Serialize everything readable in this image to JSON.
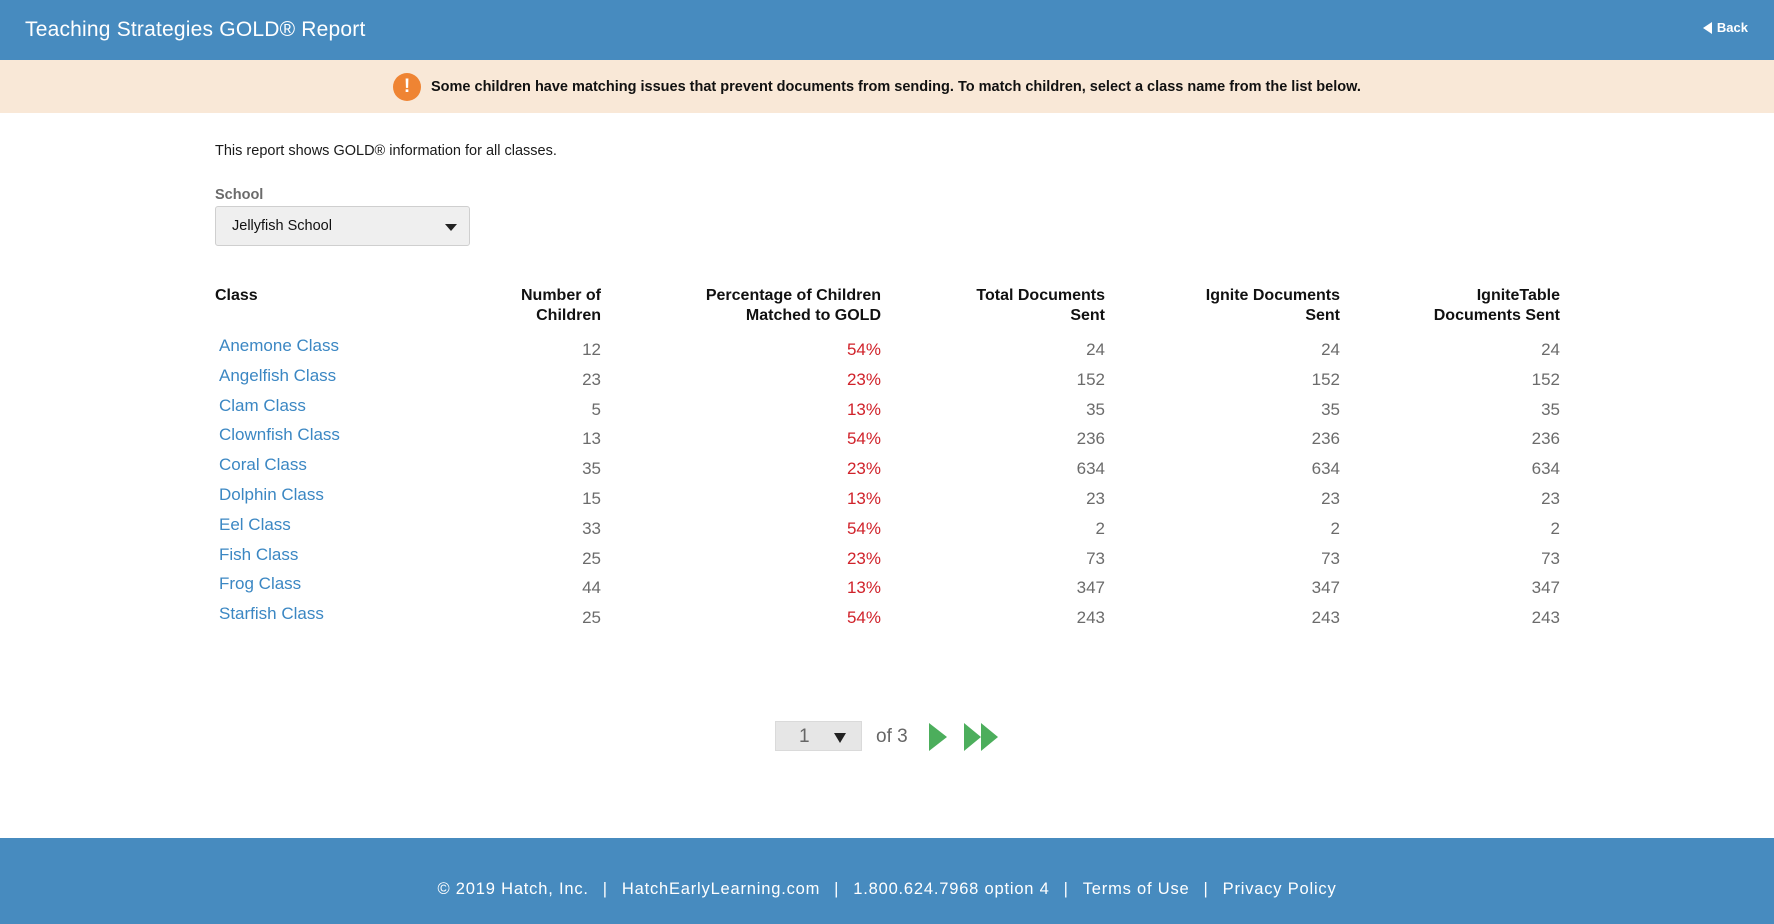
{
  "header": {
    "title": "Teaching Strategies GOLD® Report",
    "back_label": "Back"
  },
  "alert": {
    "icon": "exclamation-icon",
    "icon_glyph": "!",
    "message": "Some children have matching issues that prevent documents from sending. To match children, select a class name from the list below."
  },
  "intro": "This report shows GOLD® information for all classes.",
  "school": {
    "label": "School",
    "selected": "Jellyfish School"
  },
  "table": {
    "columns": [
      {
        "line1": "Class",
        "line2": ""
      },
      {
        "line1": "Number of",
        "line2": "Children"
      },
      {
        "line1": "Percentage of Children",
        "line2": "Matched to GOLD"
      },
      {
        "line1": "Total Documents",
        "line2": "Sent"
      },
      {
        "line1": "Ignite Documents",
        "line2": "Sent"
      },
      {
        "line1": "IgniteTable",
        "line2": "Documents Sent"
      }
    ],
    "rows": [
      {
        "class": "Anemone Class",
        "children": "12",
        "pct": "54%",
        "total": "24",
        "ignite": "24",
        "ignitetable": "24"
      },
      {
        "class": "Angelfish Class",
        "children": "23",
        "pct": "23%",
        "total": "152",
        "ignite": "152",
        "ignitetable": "152"
      },
      {
        "class": "Clam Class",
        "children": "5",
        "pct": "13%",
        "total": "35",
        "ignite": "35",
        "ignitetable": "35"
      },
      {
        "class": "Clownfish Class",
        "children": "13",
        "pct": "54%",
        "total": "236",
        "ignite": "236",
        "ignitetable": "236"
      },
      {
        "class": "Coral Class",
        "children": "35",
        "pct": "23%",
        "total": "634",
        "ignite": "634",
        "ignitetable": "634"
      },
      {
        "class": "Dolphin Class",
        "children": "15",
        "pct": "13%",
        "total": "23",
        "ignite": "23",
        "ignitetable": "23"
      },
      {
        "class": "Eel Class",
        "children": "33",
        "pct": "54%",
        "total": "2",
        "ignite": "2",
        "ignitetable": "2"
      },
      {
        "class": "Fish Class",
        "children": "25",
        "pct": "23%",
        "total": "73",
        "ignite": "73",
        "ignitetable": "73"
      },
      {
        "class": "Frog Class",
        "children": "44",
        "pct": "13%",
        "total": "347",
        "ignite": "347",
        "ignitetable": "347"
      },
      {
        "class": "Starfish Class",
        "children": "25",
        "pct": "54%",
        "total": "243",
        "ignite": "243",
        "ignitetable": "243"
      }
    ]
  },
  "pagination": {
    "current_page": "1",
    "of_label": "of 3",
    "next_icon": "play-icon",
    "last_icon": "fast-forward-icon"
  },
  "footer": {
    "copyright": "© 2019 Hatch, Inc.",
    "website": "HatchEarlyLearning.com",
    "phone": "1.800.624.7968 option 4",
    "terms": "Terms of Use",
    "privacy": "Privacy Policy",
    "separator": "|"
  },
  "colors": {
    "brand_blue": "#478bbf",
    "alert_bg": "#f9e8d7",
    "alert_icon": "#ef8433",
    "link_blue": "#3b87c3",
    "pct_red": "#d0222a",
    "pager_green": "#4cae5c"
  }
}
